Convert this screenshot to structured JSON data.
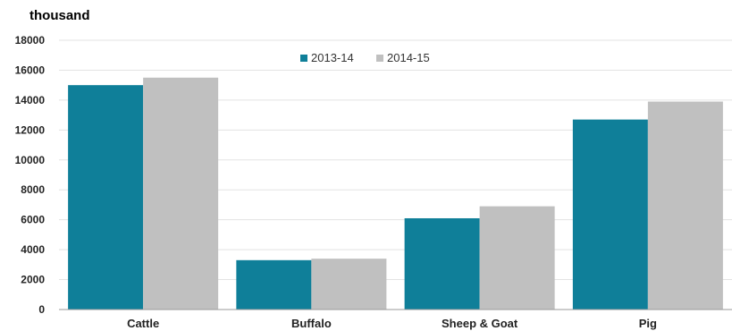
{
  "chart_data": {
    "type": "bar",
    "title": "",
    "unit_label": "thousand",
    "xlabel": "",
    "ylabel": "",
    "categories": [
      "Cattle",
      "Buffalo",
      "Sheep & Goat",
      "Pig"
    ],
    "series": [
      {
        "name": "2013-14",
        "color": "#0f7f99",
        "values": [
          15000,
          3300,
          6100,
          12700
        ]
      },
      {
        "name": "2014-15",
        "color": "#c0c0c0",
        "values": [
          15500,
          3400,
          6900,
          13900
        ]
      }
    ],
    "ylim": [
      0,
      18000
    ],
    "yticks": [
      "0",
      "2000",
      "4000",
      "6000",
      "8000",
      "10000",
      "12000",
      "14000",
      "16000",
      "18000"
    ],
    "grid": true,
    "legend_position": "top-center"
  }
}
